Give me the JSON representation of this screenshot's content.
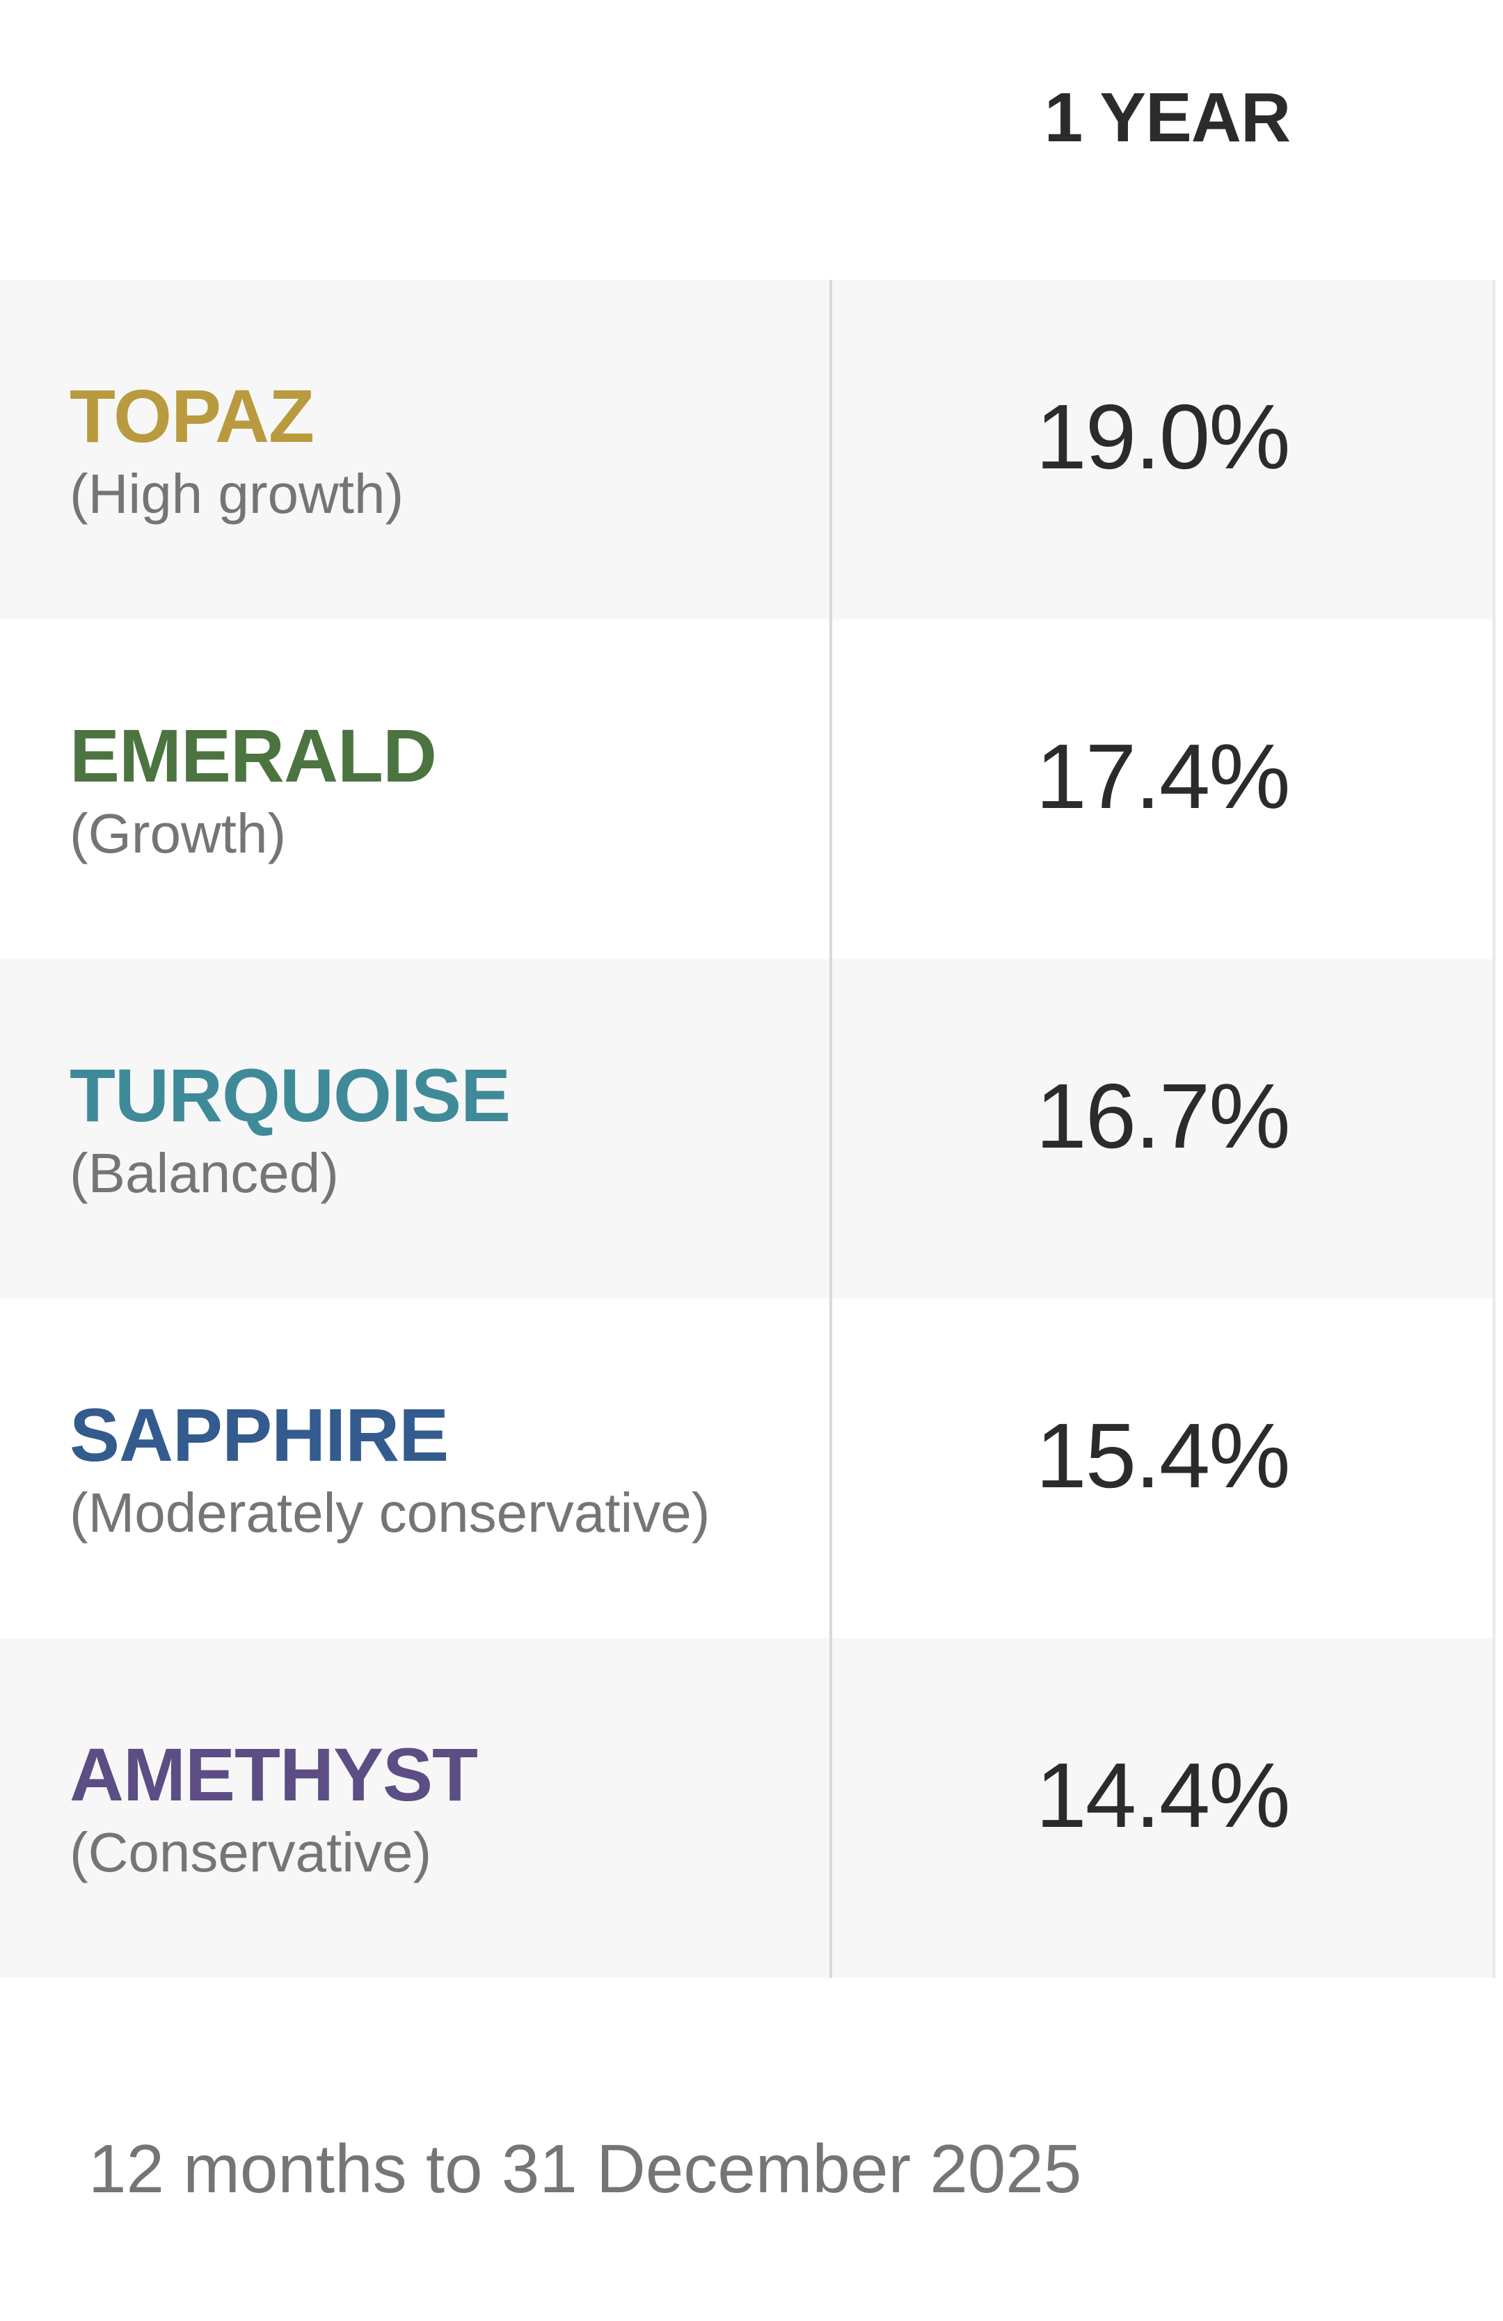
{
  "header": {
    "column_title": "1 YEAR"
  },
  "funds": [
    {
      "name": "TOPAZ",
      "description": "(High growth)",
      "return": "19.0%",
      "color": "#b99a3e"
    },
    {
      "name": "EMERALD",
      "description": "(Growth)",
      "return": "17.4%",
      "color": "#4b7441"
    },
    {
      "name": "TURQUOISE",
      "description": "(Balanced)",
      "return": "16.7%",
      "color": "#3f8a99"
    },
    {
      "name": "SAPPHIRE",
      "description": "(Moderately conservative)",
      "return": "15.4%",
      "color": "#335b8e"
    },
    {
      "name": "AMETHYST",
      "description": "(Conservative)",
      "return": "14.4%",
      "color": "#5c4d84"
    }
  ],
  "footnote": "12 months to 31 December 2025"
}
